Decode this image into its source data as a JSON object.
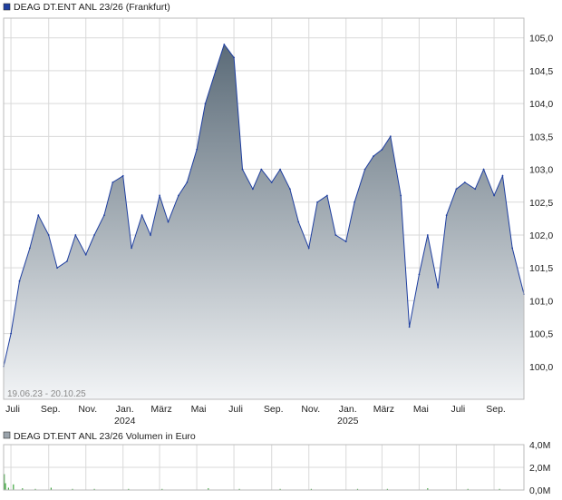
{
  "header": {
    "main_legend": "DEAG DT.ENT     ANL 23/26 (Frankfurt)",
    "volume_legend": "DEAG DT.ENT     ANL 23/26 Volumen in Euro",
    "date_range": "19.06.23 - 20.10.25"
  },
  "colors": {
    "line": "#1f3fa0",
    "fill_top": "#5b6b78",
    "fill_bottom": "#f2f4f6",
    "grid": "#d9d9d9",
    "volume_bar": "#3aa33a",
    "legend_square_main": "#1f3fa0",
    "legend_square_volume": "#9aa3ab"
  },
  "chart_data": [
    {
      "type": "area",
      "series": [
        {
          "name": "DEAG DT.ENT ANL 23/26 (Frankfurt)",
          "x": [
            "2023-06-19",
            "2023-07-01",
            "2023-07-15",
            "2023-08-01",
            "2023-08-15",
            "2023-09-01",
            "2023-09-15",
            "2023-10-01",
            "2023-10-15",
            "2023-11-01",
            "2023-11-15",
            "2023-12-01",
            "2023-12-15",
            "2024-01-01",
            "2024-01-15",
            "2024-02-01",
            "2024-02-15",
            "2024-03-01",
            "2024-03-15",
            "2024-04-01",
            "2024-04-15",
            "2024-05-01",
            "2024-05-15",
            "2024-06-01",
            "2024-06-15",
            "2024-07-01",
            "2024-07-15",
            "2024-08-01",
            "2024-08-15",
            "2024-09-01",
            "2024-09-15",
            "2024-10-01",
            "2024-10-15",
            "2024-11-01",
            "2024-11-15",
            "2024-12-01",
            "2024-12-15",
            "2025-01-01",
            "2025-01-15",
            "2025-02-01",
            "2025-02-15",
            "2025-03-01",
            "2025-03-15",
            "2025-04-01",
            "2025-04-15",
            "2025-05-01",
            "2025-05-15",
            "2025-06-01",
            "2025-06-15",
            "2025-07-01",
            "2025-07-15",
            "2025-08-01",
            "2025-08-15",
            "2025-09-01",
            "2025-09-15",
            "2025-10-01",
            "2025-10-20"
          ],
          "values": [
            100.0,
            100.5,
            101.3,
            101.8,
            102.3,
            102.0,
            101.5,
            101.6,
            102.0,
            101.7,
            102.0,
            102.3,
            102.8,
            102.9,
            101.8,
            102.3,
            102.0,
            102.6,
            102.2,
            102.6,
            102.8,
            103.3,
            104.0,
            104.5,
            104.9,
            104.7,
            103.0,
            102.7,
            103.0,
            102.8,
            103.0,
            102.7,
            102.2,
            101.8,
            102.5,
            102.6,
            102.0,
            101.9,
            102.5,
            103.0,
            103.2,
            103.3,
            103.5,
            102.6,
            100.6,
            101.4,
            102.0,
            101.2,
            102.3,
            102.7,
            102.8,
            102.7,
            103.0,
            102.6,
            102.9,
            101.8,
            101.1
          ]
        }
      ],
      "ylim": [
        99.5,
        105.3
      ],
      "yticks": [
        "100,0",
        "100,5",
        "101,0",
        "101,5",
        "102,0",
        "102,5",
        "103,0",
        "103,5",
        "104,0",
        "104,5",
        "105,0"
      ],
      "xticks": [
        {
          "label": "Juli",
          "date": "2023-07-01"
        },
        {
          "label": "Sep.",
          "date": "2023-09-01"
        },
        {
          "label": "Nov.",
          "date": "2023-11-01"
        },
        {
          "label": "Jan.",
          "sub": "2024",
          "date": "2024-01-01"
        },
        {
          "label": "März",
          "date": "2024-03-01"
        },
        {
          "label": "Mai",
          "date": "2024-05-01"
        },
        {
          "label": "Juli",
          "date": "2024-07-01"
        },
        {
          "label": "Sep.",
          "date": "2024-09-01"
        },
        {
          "label": "Nov.",
          "date": "2024-11-01"
        },
        {
          "label": "Jan.",
          "sub": "2025",
          "date": "2025-01-01"
        },
        {
          "label": "März",
          "date": "2025-03-01"
        },
        {
          "label": "Mai",
          "date": "2025-05-01"
        },
        {
          "label": "Juli",
          "date": "2025-07-01"
        },
        {
          "label": "Sep.",
          "date": "2025-09-01"
        }
      ],
      "x_range": [
        "2023-06-19",
        "2025-10-20"
      ],
      "grid": true
    },
    {
      "type": "bar",
      "series": [
        {
          "name": "Volumen in Euro",
          "x": [
            "2023-06-20",
            "2023-06-22",
            "2023-06-27",
            "2023-07-05",
            "2023-07-20",
            "2023-08-10",
            "2023-09-05",
            "2023-10-10",
            "2023-11-15",
            "2024-01-10",
            "2024-03-05",
            "2024-05-20",
            "2024-07-10",
            "2024-09-15",
            "2024-11-05",
            "2025-01-20",
            "2025-03-10",
            "2025-05-15",
            "2025-07-20",
            "2025-09-10"
          ],
          "values": [
            1.4,
            0.6,
            0.2,
            0.5,
            0.15,
            0.1,
            0.2,
            0.1,
            0.1,
            0.1,
            0.1,
            0.15,
            0.1,
            0.1,
            0.1,
            0.1,
            0.1,
            0.15,
            0.1,
            0.1
          ]
        }
      ],
      "ylim": [
        0,
        4.0
      ],
      "yticks": [
        "0,0M",
        "2,0M",
        "4,0M"
      ],
      "grid": true
    }
  ]
}
